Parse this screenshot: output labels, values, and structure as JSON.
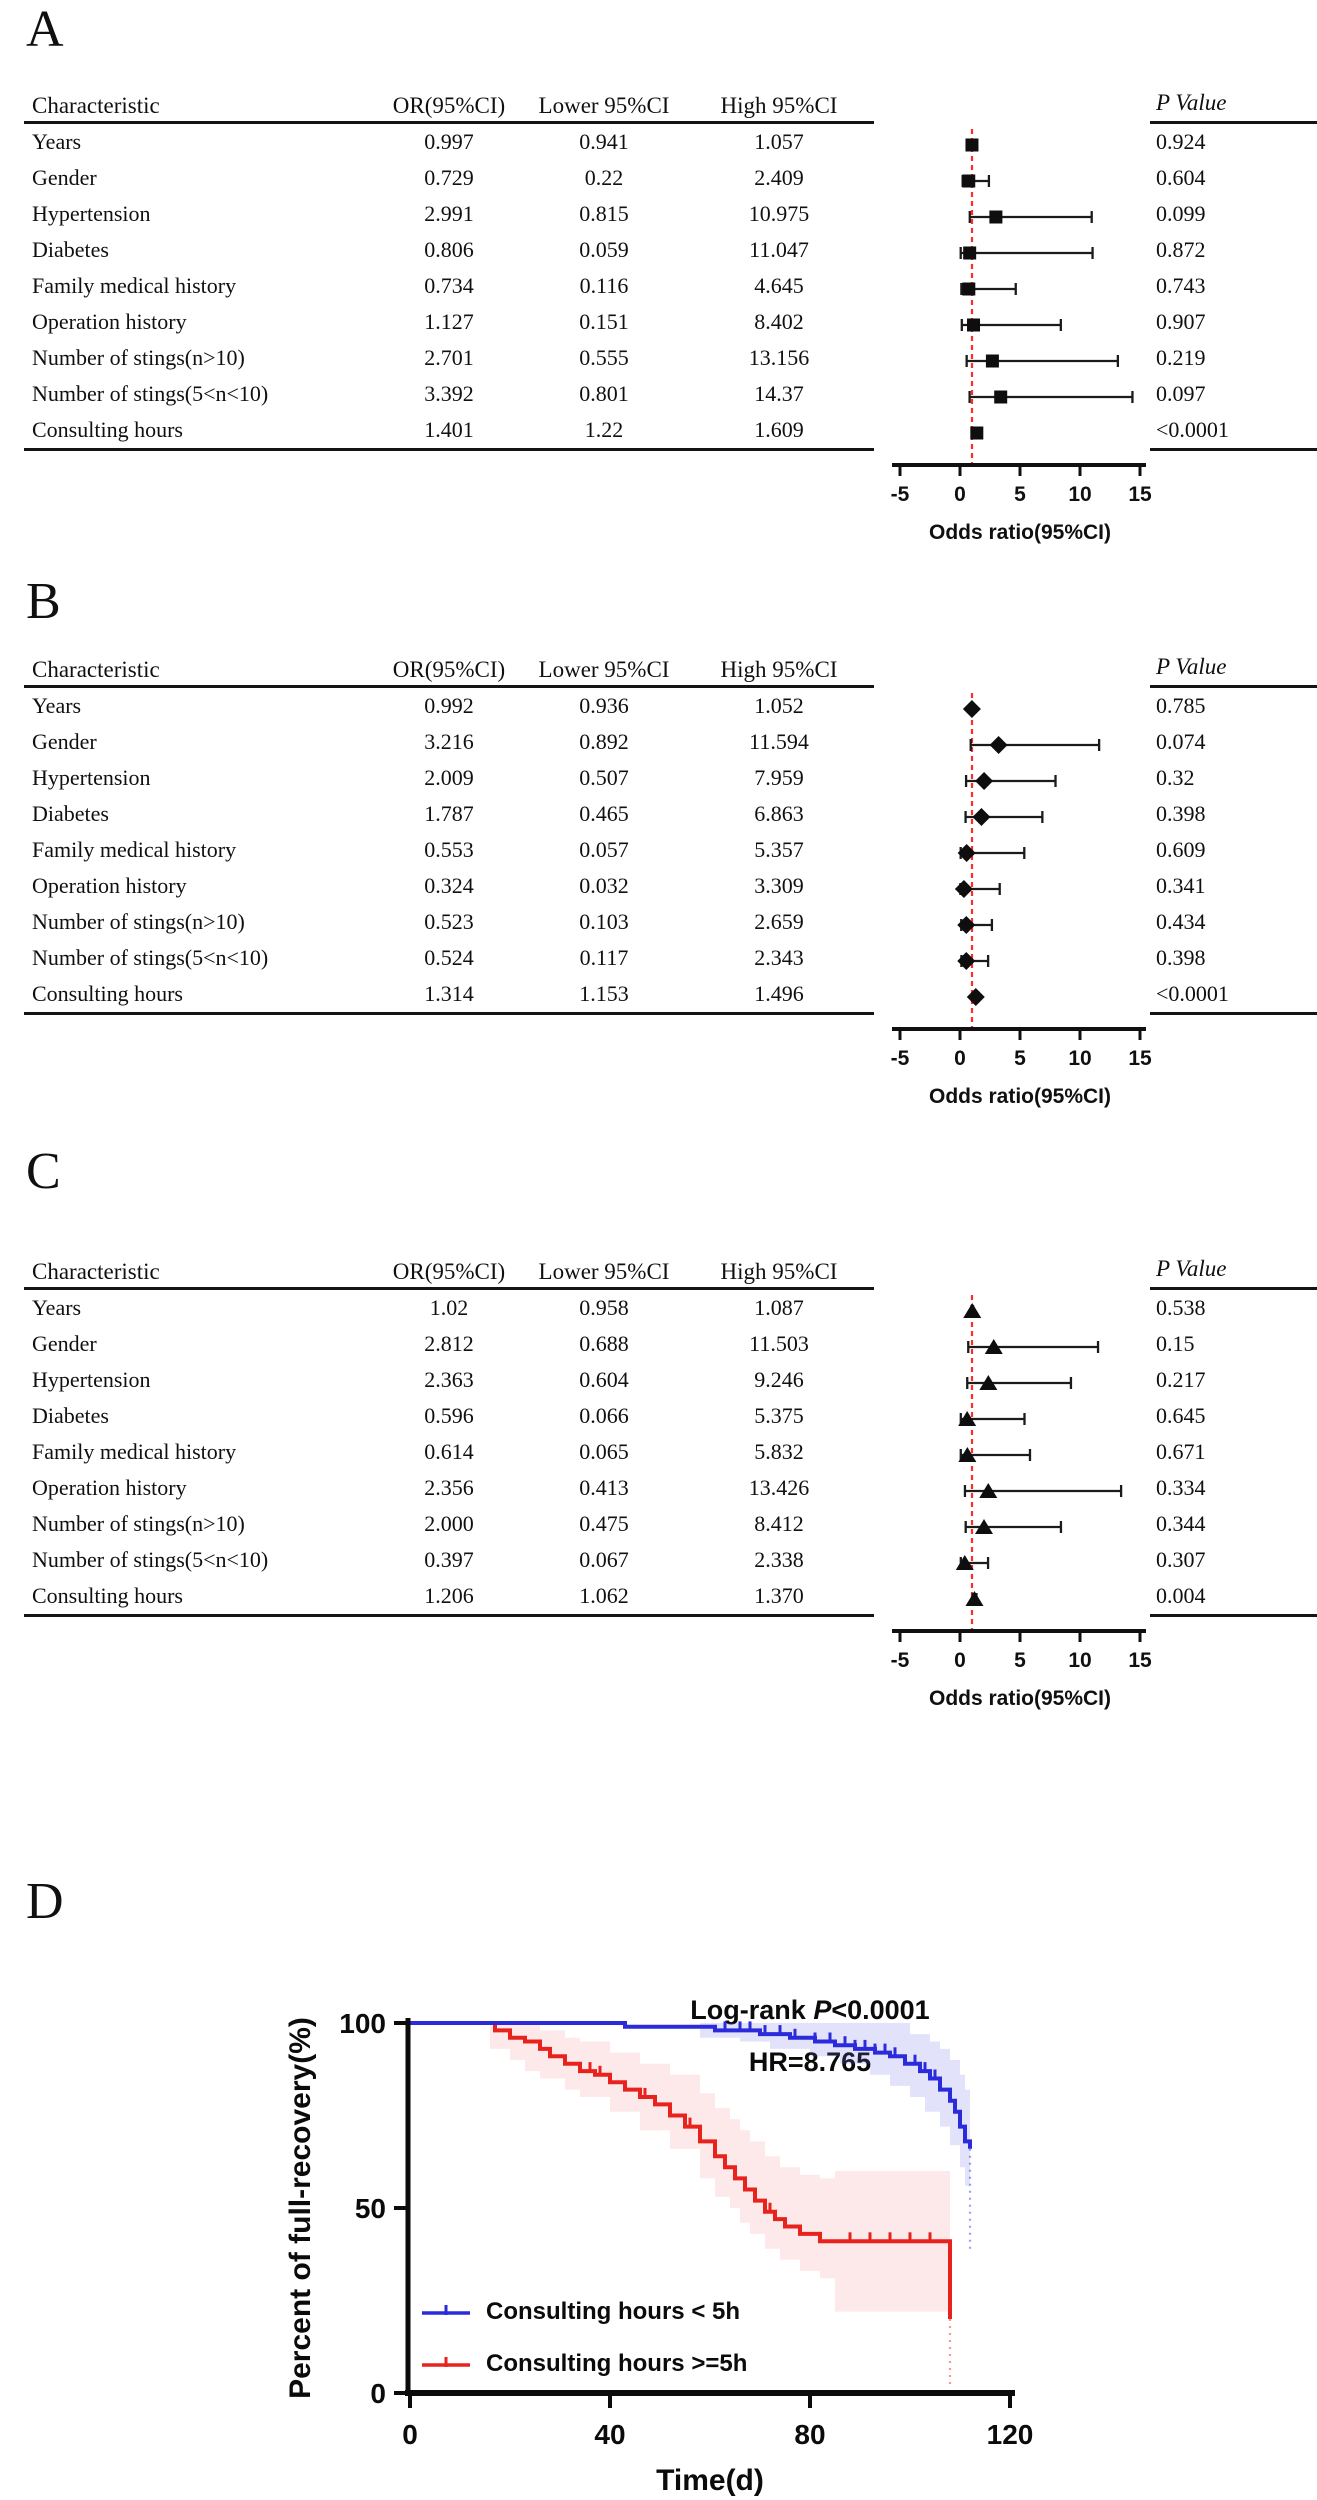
{
  "chart_data": [
    {
      "type": "forest",
      "panel": "A",
      "marker": "square",
      "columns": [
        "Characteristic",
        "OR(95%CI)",
        "Lower 95%CI",
        "High 95%CI"
      ],
      "p_label": "P Value",
      "x_ticks": [
        -5,
        0,
        5,
        10,
        15
      ],
      "x_label": "Odds ratio(95%CI)",
      "ref_line": 1,
      "rows": [
        {
          "characteristic": "Years",
          "or": "0.997",
          "lower": "0.941",
          "high": "1.057",
          "p": "0.924"
        },
        {
          "characteristic": "Gender",
          "or": "0.729",
          "lower": "0.22",
          "high": "2.409",
          "p": "0.604"
        },
        {
          "characteristic": "Hypertension",
          "or": "2.991",
          "lower": "0.815",
          "high": "10.975",
          "p": "0.099"
        },
        {
          "characteristic": "Diabetes",
          "or": "0.806",
          "lower": "0.059",
          "high": "11.047",
          "p": "0.872"
        },
        {
          "characteristic": "Family medical history",
          "or": "0.734",
          "lower": "0.116",
          "high": "4.645",
          "p": "0.743"
        },
        {
          "characteristic": "Operation history",
          "or": "1.127",
          "lower": "0.151",
          "high": "8.402",
          "p": "0.907"
        },
        {
          "characteristic": "Number of stings(n>10)",
          "or": "2.701",
          "lower": "0.555",
          "high": "13.156",
          "p": "0.219"
        },
        {
          "characteristic": "Number of stings(5<n<10)",
          "or": "3.392",
          "lower": "0.801",
          "high": "14.37",
          "p": "0.097"
        },
        {
          "characteristic": "Consulting hours",
          "or": "1.401",
          "lower": "1.22",
          "high": "1.609",
          "p": "<0.0001"
        }
      ]
    },
    {
      "type": "forest",
      "panel": "B",
      "marker": "diamond",
      "columns": [
        "Characteristic",
        "OR(95%CI)",
        "Lower 95%CI",
        "High 95%CI"
      ],
      "p_label": "P Value",
      "x_ticks": [
        -5,
        0,
        5,
        10,
        15
      ],
      "x_label": "Odds ratio(95%CI)",
      "ref_line": 1,
      "rows": [
        {
          "characteristic": "Years",
          "or": "0.992",
          "lower": "0.936",
          "high": "1.052",
          "p": "0.785"
        },
        {
          "characteristic": "Gender",
          "or": "3.216",
          "lower": "0.892",
          "high": "11.594",
          "p": "0.074"
        },
        {
          "characteristic": "Hypertension",
          "or": "2.009",
          "lower": "0.507",
          "high": "7.959",
          "p": "0.32"
        },
        {
          "characteristic": "Diabetes",
          "or": "1.787",
          "lower": "0.465",
          "high": "6.863",
          "p": "0.398"
        },
        {
          "characteristic": "Family medical history",
          "or": "0.553",
          "lower": "0.057",
          "high": "5.357",
          "p": "0.609"
        },
        {
          "characteristic": "Operation history",
          "or": "0.324",
          "lower": "0.032",
          "high": "3.309",
          "p": "0.341"
        },
        {
          "characteristic": "Number of stings(n>10)",
          "or": "0.523",
          "lower": "0.103",
          "high": "2.659",
          "p": "0.434"
        },
        {
          "characteristic": "Number of stings(5<n<10)",
          "or": "0.524",
          "lower": "0.117",
          "high": "2.343",
          "p": "0.398"
        },
        {
          "characteristic": "Consulting hours",
          "or": "1.314",
          "lower": "1.153",
          "high": "1.496",
          "p": "<0.0001"
        }
      ]
    },
    {
      "type": "forest",
      "panel": "C",
      "marker": "triangle",
      "columns": [
        "Characteristic",
        "OR(95%CI)",
        "Lower 95%CI",
        "High 95%CI"
      ],
      "p_label": "P Value",
      "x_ticks": [
        -5,
        0,
        5,
        10,
        15
      ],
      "x_label": "Odds ratio(95%CI)",
      "ref_line": 1,
      "rows": [
        {
          "characteristic": "Years",
          "or": "1.02",
          "lower": "0.958",
          "high": "1.087",
          "p": "0.538"
        },
        {
          "characteristic": "Gender",
          "or": "2.812",
          "lower": "0.688",
          "high": "11.503",
          "p": "0.15"
        },
        {
          "characteristic": "Hypertension",
          "or": "2.363",
          "lower": "0.604",
          "high": "9.246",
          "p": "0.217"
        },
        {
          "characteristic": "Diabetes",
          "or": "0.596",
          "lower": "0.066",
          "high": "5.375",
          "p": "0.645"
        },
        {
          "characteristic": "Family medical history",
          "or": "0.614",
          "lower": "0.065",
          "high": "5.832",
          "p": "0.671"
        },
        {
          "characteristic": "Operation history",
          "or": "2.356",
          "lower": "0.413",
          "high": "13.426",
          "p": "0.334"
        },
        {
          "characteristic": "Number of stings(n>10)",
          "or": "2.000",
          "lower": "0.475",
          "high": "8.412",
          "p": "0.344"
        },
        {
          "characteristic": "Number of stings(5<n<10)",
          "or": "0.397",
          "lower": "0.067",
          "high": "2.338",
          "p": "0.307"
        },
        {
          "characteristic": "Consulting hours",
          "or": "1.206",
          "lower": "1.062",
          "high": "1.370",
          "p": "0.004"
        }
      ]
    },
    {
      "type": "km_step",
      "panel": "D",
      "title": {
        "pre": "Log-rank ",
        "p": "P",
        "post": "<0.0001",
        "line2": "HR=8.765"
      },
      "x_label": "Time(d)",
      "y_label": "Percent of full-recovery(%)",
      "x_ticks": [
        0,
        40,
        80,
        120
      ],
      "y_ticks": [
        0,
        50,
        100
      ],
      "xlim": [
        0,
        120
      ],
      "ylim": [
        0,
        100
      ],
      "series": [
        {
          "name": "Consulting hours >=5h",
          "color": "#e8231d",
          "band_color": "rgba(242,120,120,0.16)",
          "steps": [
            [
              0,
              100
            ],
            [
              17,
              100
            ],
            [
              17,
              98
            ],
            [
              20,
              98
            ],
            [
              20,
              96
            ],
            [
              23,
              96
            ],
            [
              23,
              95
            ],
            [
              26,
              95
            ],
            [
              26,
              93
            ],
            [
              28,
              93
            ],
            [
              28,
              91
            ],
            [
              31,
              91
            ],
            [
              31,
              89
            ],
            [
              34,
              89
            ],
            [
              34,
              87
            ],
            [
              37,
              87
            ],
            [
              37,
              86
            ],
            [
              40,
              86
            ],
            [
              40,
              84
            ],
            [
              43,
              84
            ],
            [
              43,
              82
            ],
            [
              46,
              82
            ],
            [
              46,
              80
            ],
            [
              49,
              80
            ],
            [
              49,
              78
            ],
            [
              52,
              78
            ],
            [
              52,
              75
            ],
            [
              55,
              75
            ],
            [
              55,
              72
            ],
            [
              58,
              72
            ],
            [
              58,
              68
            ],
            [
              61,
              68
            ],
            [
              61,
              64
            ],
            [
              63,
              64
            ],
            [
              63,
              61
            ],
            [
              65,
              61
            ],
            [
              65,
              58
            ],
            [
              67,
              58
            ],
            [
              67,
              55
            ],
            [
              69,
              55
            ],
            [
              69,
              52
            ],
            [
              71,
              52
            ],
            [
              71,
              49
            ],
            [
              73,
              49
            ],
            [
              73,
              47
            ],
            [
              75,
              47
            ],
            [
              75,
              45
            ],
            [
              78,
              45
            ],
            [
              78,
              43
            ],
            [
              82,
              43
            ],
            [
              82,
              41
            ],
            [
              108,
              41
            ],
            [
              108,
              20
            ]
          ],
          "censor_times": [
            17,
            36,
            38,
            40,
            47,
            49,
            56,
            58,
            63,
            72,
            88,
            92,
            96,
            100,
            104
          ],
          "band_upper": [
            [
              16,
              100
            ],
            [
              26,
              100
            ],
            [
              26,
              98
            ],
            [
              31,
              96
            ],
            [
              34,
              95
            ],
            [
              40,
              92
            ],
            [
              46,
              89
            ],
            [
              52,
              86
            ],
            [
              58,
              81
            ],
            [
              61,
              77
            ],
            [
              64,
              74
            ],
            [
              66,
              71
            ],
            [
              68,
              68
            ],
            [
              71,
              64
            ],
            [
              74,
              61
            ],
            [
              78,
              59
            ],
            [
              82,
              58
            ],
            [
              85,
              60
            ],
            [
              108,
              60
            ],
            [
              108,
              42
            ]
          ],
          "band_lower": [
            [
              16,
              93
            ],
            [
              20,
              90
            ],
            [
              23,
              87
            ],
            [
              26,
              85
            ],
            [
              31,
              82
            ],
            [
              34,
              80
            ],
            [
              40,
              76
            ],
            [
              46,
              71
            ],
            [
              52,
              66
            ],
            [
              58,
              58
            ],
            [
              61,
              53
            ],
            [
              64,
              50
            ],
            [
              66,
              46
            ],
            [
              68,
              43
            ],
            [
              71,
              39
            ],
            [
              74,
              36
            ],
            [
              78,
              33
            ],
            [
              82,
              31
            ],
            [
              85,
              22
            ],
            [
              108,
              22
            ],
            [
              108,
              4
            ]
          ],
          "tail_dotted": {
            "t": 108,
            "from": 20,
            "to": 2
          }
        },
        {
          "name": "Consulting hours < 5h",
          "color": "#2b2bdc",
          "band_color": "rgba(110,110,235,0.20)",
          "steps": [
            [
              0,
              100
            ],
            [
              43,
              100
            ],
            [
              43,
              99
            ],
            [
              61,
              99
            ],
            [
              61,
              98
            ],
            [
              70,
              98
            ],
            [
              70,
              97
            ],
            [
              76,
              97
            ],
            [
              76,
              96
            ],
            [
              81,
              96
            ],
            [
              81,
              95
            ],
            [
              85,
              95
            ],
            [
              85,
              94
            ],
            [
              89,
              94
            ],
            [
              89,
              93
            ],
            [
              93,
              93
            ],
            [
              93,
              92
            ],
            [
              96,
              92
            ],
            [
              96,
              91
            ],
            [
              99,
              91
            ],
            [
              99,
              89
            ],
            [
              102,
              89
            ],
            [
              102,
              87
            ],
            [
              104,
              87
            ],
            [
              104,
              85
            ],
            [
              106,
              85
            ],
            [
              106,
              82
            ],
            [
              108,
              82
            ],
            [
              108,
              79
            ],
            [
              109,
              79
            ],
            [
              109,
              76
            ],
            [
              110,
              76
            ],
            [
              110,
              72
            ],
            [
              111,
              72
            ],
            [
              111,
              68
            ],
            [
              112,
              68
            ],
            [
              112,
              66
            ]
          ],
          "censor_times": [
            63,
            66,
            68,
            71,
            74,
            77,
            81,
            84,
            87,
            89,
            91,
            93,
            95,
            97,
            99,
            101,
            103,
            105
          ],
          "band_upper": [
            [
              58,
              100
            ],
            [
              100,
              100
            ],
            [
              100,
              97
            ],
            [
              104,
              95
            ],
            [
              106,
              93
            ],
            [
              108,
              90
            ],
            [
              110,
              86
            ],
            [
              111,
              82
            ],
            [
              112,
              78
            ],
            [
              112,
              74
            ]
          ],
          "band_lower": [
            [
              58,
              96
            ],
            [
              66,
              95
            ],
            [
              72,
              93
            ],
            [
              80,
              91
            ],
            [
              86,
              89
            ],
            [
              92,
              86
            ],
            [
              96,
              83
            ],
            [
              100,
              80
            ],
            [
              103,
              76
            ],
            [
              106,
              72
            ],
            [
              108,
              67
            ],
            [
              110,
              61
            ],
            [
              111,
              56
            ],
            [
              112,
              50
            ]
          ],
          "tail_dotted": {
            "t": 112,
            "from": 66,
            "to": 38
          }
        }
      ]
    }
  ]
}
